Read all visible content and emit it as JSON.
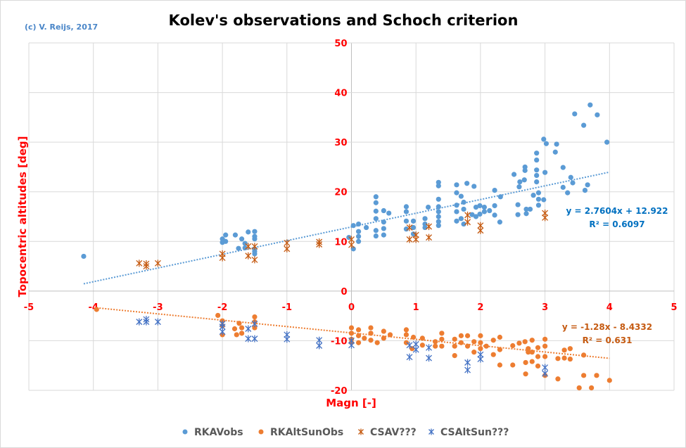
{
  "chart_data": {
    "type": "scatter",
    "title": "Kolev's observations and Schoch criterion",
    "copyright": "(c) V. Reijs, 2017",
    "xlabel": "Magn [-]",
    "ylabel": "Topocentric altitudes [deg]",
    "xlim": [
      -5,
      5
    ],
    "ylim": [
      -20,
      50
    ],
    "xticks": [
      -5,
      -4,
      -3,
      -2,
      -1,
      0,
      1,
      2,
      3,
      4,
      5
    ],
    "yticks": [
      -20,
      -10,
      0,
      10,
      20,
      30,
      40,
      50
    ],
    "grid": true,
    "legend_position": "bottom",
    "series": [
      {
        "name": "RKAVobs",
        "marker": "circle",
        "color": "#5b9bd5",
        "points": [
          [
            -4.15,
            7
          ],
          [
            -2,
            9.8
          ],
          [
            -2,
            10.5
          ],
          [
            -1.95,
            11.3
          ],
          [
            -1.95,
            10
          ],
          [
            -1.8,
            11.3
          ],
          [
            -1.7,
            10.5
          ],
          [
            -1.65,
            9.6
          ],
          [
            -1.75,
            8.6
          ],
          [
            -1.6,
            11.9
          ],
          [
            -1.65,
            8.7
          ],
          [
            -1.5,
            12
          ],
          [
            -1.5,
            11
          ],
          [
            -1.5,
            10.5
          ],
          [
            -1.5,
            8.5
          ],
          [
            -1.5,
            7.5
          ],
          [
            -1.5,
            8
          ],
          [
            -0.04,
            10.8
          ],
          [
            0.03,
            8.5
          ],
          [
            0.03,
            13.2
          ],
          [
            0.11,
            13.5
          ],
          [
            0.11,
            12
          ],
          [
            0.11,
            11
          ],
          [
            0.11,
            10
          ],
          [
            0.23,
            12.8
          ],
          [
            0.38,
            19
          ],
          [
            0.38,
            17.8
          ],
          [
            0.38,
            16.1
          ],
          [
            0.38,
            14.6
          ],
          [
            0.38,
            12.2
          ],
          [
            0.38,
            11.1
          ],
          [
            0.5,
            16.2
          ],
          [
            0.5,
            13.9
          ],
          [
            0.5,
            12.6
          ],
          [
            0.5,
            11.3
          ],
          [
            0.58,
            15.7
          ],
          [
            0.85,
            17
          ],
          [
            0.85,
            16
          ],
          [
            0.85,
            14.1
          ],
          [
            0.85,
            12.5
          ],
          [
            0.96,
            14.1
          ],
          [
            0.96,
            12.8
          ],
          [
            0.96,
            11.5
          ],
          [
            1.14,
            14.6
          ],
          [
            1.14,
            13.5
          ],
          [
            1.14,
            12.8
          ],
          [
            1.19,
            16.9
          ],
          [
            1.35,
            21.9
          ],
          [
            1.35,
            21.2
          ],
          [
            1.35,
            18.5
          ],
          [
            1.35,
            17
          ],
          [
            1.35,
            16
          ],
          [
            1.35,
            15
          ],
          [
            1.35,
            14
          ],
          [
            1.35,
            13.2
          ],
          [
            1.63,
            21.4
          ],
          [
            1.63,
            19.8
          ],
          [
            1.63,
            17.3
          ],
          [
            1.63,
            16
          ],
          [
            1.63,
            14.1
          ],
          [
            1.7,
            19.1
          ],
          [
            1.74,
            17.9
          ],
          [
            1.74,
            16.5
          ],
          [
            1.7,
            14.6
          ],
          [
            1.74,
            13.5
          ],
          [
            1.79,
            21.7
          ],
          [
            1.9,
            21.1
          ],
          [
            1.87,
            15.4
          ],
          [
            1.93,
            16.9
          ],
          [
            1.93,
            15
          ],
          [
            1.99,
            17.2
          ],
          [
            1.99,
            15.5
          ],
          [
            2.06,
            16.9
          ],
          [
            2.06,
            16
          ],
          [
            2.14,
            16.2
          ],
          [
            2.22,
            20.3
          ],
          [
            2.22,
            17.2
          ],
          [
            2.22,
            15.3
          ],
          [
            2.31,
            19
          ],
          [
            2.3,
            13.9
          ],
          [
            2.52,
            23.5
          ],
          [
            2.61,
            22
          ],
          [
            2.6,
            21
          ],
          [
            2.69,
            25
          ],
          [
            2.69,
            24.3
          ],
          [
            2.68,
            22.4
          ],
          [
            2.58,
            17.4
          ],
          [
            2.58,
            15.4
          ],
          [
            2.71,
            16.5
          ],
          [
            2.71,
            15.6
          ],
          [
            2.77,
            16.5
          ],
          [
            2.87,
            27.8
          ],
          [
            2.87,
            26.4
          ],
          [
            2.87,
            24.4
          ],
          [
            2.87,
            23.3
          ],
          [
            2.87,
            22
          ],
          [
            3,
            23.9
          ],
          [
            2.98,
            30.6
          ],
          [
            3.02,
            29.7
          ],
          [
            2.82,
            19.3
          ],
          [
            2.9,
            19.8
          ],
          [
            2.9,
            18.5
          ],
          [
            2.9,
            17.3
          ],
          [
            2.98,
            18.4
          ],
          [
            3.18,
            29.6
          ],
          [
            3.16,
            28
          ],
          [
            3.28,
            24.9
          ],
          [
            3.4,
            22.9
          ],
          [
            3.43,
            21.8
          ],
          [
            3.28,
            20.9
          ],
          [
            3.35,
            19.8
          ],
          [
            3.62,
            20.3
          ],
          [
            3.66,
            21.4
          ],
          [
            3.46,
            35.7
          ],
          [
            3.6,
            33.4
          ],
          [
            3.7,
            37.5
          ],
          [
            3.81,
            35.5
          ],
          [
            3.96,
            30
          ]
        ]
      },
      {
        "name": "RKAltSunObs",
        "marker": "circle",
        "color": "#ed7d31",
        "points": [
          [
            -3.95,
            -3.7
          ],
          [
            -2.07,
            -4.9
          ],
          [
            -2,
            -6
          ],
          [
            -2,
            -7
          ],
          [
            -2,
            -8.8
          ],
          [
            -1.81,
            -7.6
          ],
          [
            -1.78,
            -8.8
          ],
          [
            -1.74,
            -6.5
          ],
          [
            -1.7,
            -7.4
          ],
          [
            -1.7,
            -8.5
          ],
          [
            -1.5,
            -5.2
          ],
          [
            -1.5,
            -6.2
          ],
          [
            -1.5,
            -7.4
          ],
          [
            0,
            -7.4
          ],
          [
            0,
            -8.5
          ],
          [
            0,
            -9.7
          ],
          [
            0,
            -10.4
          ],
          [
            0.11,
            -7.8
          ],
          [
            0.11,
            -9
          ],
          [
            0.11,
            -10.4
          ],
          [
            0.2,
            -9.5
          ],
          [
            0.3,
            -7.4
          ],
          [
            0.3,
            -8.5
          ],
          [
            0.3,
            -9.9
          ],
          [
            0.4,
            -10.4
          ],
          [
            0.5,
            -8.1
          ],
          [
            0.5,
            -9.5
          ],
          [
            0.6,
            -8.8
          ],
          [
            0.85,
            -7.8
          ],
          [
            0.85,
            -8.8
          ],
          [
            0.85,
            -10.4
          ],
          [
            0.96,
            -9.3
          ],
          [
            0.94,
            -11.6
          ],
          [
            1.1,
            -9.5
          ],
          [
            1.1,
            -10.9
          ],
          [
            1.3,
            -10.2
          ],
          [
            1.3,
            -11.1
          ],
          [
            1.4,
            -8.5
          ],
          [
            1.4,
            -9.7
          ],
          [
            1.4,
            -11.1
          ],
          [
            1.6,
            -9.7
          ],
          [
            1.6,
            -11.1
          ],
          [
            1.6,
            -13
          ],
          [
            1.7,
            -9
          ],
          [
            1.7,
            -10.4
          ],
          [
            1.8,
            -9
          ],
          [
            1.8,
            -11.1
          ],
          [
            1.9,
            -10.2
          ],
          [
            1.9,
            -12.3
          ],
          [
            2,
            -9
          ],
          [
            2,
            -10.4
          ],
          [
            2,
            -11.6
          ],
          [
            2.09,
            -11.1
          ],
          [
            2.2,
            -9.9
          ],
          [
            2.2,
            -12.8
          ],
          [
            2.3,
            -9.3
          ],
          [
            2.3,
            -11.8
          ],
          [
            2.3,
            -14.9
          ],
          [
            2.5,
            -11
          ],
          [
            2.5,
            -14.9
          ],
          [
            2.6,
            -10.5
          ],
          [
            2.69,
            -10.2
          ],
          [
            2.7,
            -14.4
          ],
          [
            2.7,
            -16.7
          ],
          [
            2.74,
            -11.6
          ],
          [
            2.74,
            -12.3
          ],
          [
            2.8,
            -9.9
          ],
          [
            2.8,
            -12.3
          ],
          [
            2.8,
            -14.2
          ],
          [
            2.89,
            -11.4
          ],
          [
            2.89,
            -13.2
          ],
          [
            2.89,
            -15.1
          ],
          [
            3,
            -9.7
          ],
          [
            3,
            -11.1
          ],
          [
            3,
            -13.2
          ],
          [
            3,
            -17
          ],
          [
            3.2,
            -13.6
          ],
          [
            3.2,
            -17.7
          ],
          [
            3.3,
            -11.9
          ],
          [
            3.3,
            -13.5
          ],
          [
            3.39,
            -11.6
          ],
          [
            3.39,
            -13.7
          ],
          [
            3.6,
            -12.9
          ],
          [
            3.6,
            -17
          ],
          [
            3.8,
            -17
          ],
          [
            3.53,
            -19.5
          ],
          [
            3.72,
            -19.5
          ],
          [
            4,
            -18
          ]
        ]
      },
      {
        "name": "CSAV???",
        "marker": "star",
        "color": "#c55a11",
        "points": [
          [
            -3.29,
            5.6
          ],
          [
            -3.18,
            5.5
          ],
          [
            -3.18,
            5
          ],
          [
            -3,
            5.6
          ],
          [
            -2,
            7.5
          ],
          [
            -2,
            6.7
          ],
          [
            -1.6,
            9
          ],
          [
            -1.5,
            9
          ],
          [
            -1.6,
            7.1
          ],
          [
            -1.5,
            6.3
          ],
          [
            -1,
            9.7
          ],
          [
            -1,
            8.5
          ],
          [
            -0.5,
            9.9
          ],
          [
            -0.5,
            9.4
          ],
          [
            0,
            10.4
          ],
          [
            0,
            9.3
          ],
          [
            0.9,
            12.8
          ],
          [
            0.9,
            10.4
          ],
          [
            1,
            11.3
          ],
          [
            1,
            10.4
          ],
          [
            1.2,
            13
          ],
          [
            1.2,
            10.8
          ],
          [
            1.8,
            15.3
          ],
          [
            1.8,
            13.9
          ],
          [
            2,
            13.2
          ],
          [
            2,
            12.2
          ],
          [
            3,
            15.7
          ],
          [
            3,
            14.8
          ]
        ]
      },
      {
        "name": "CSAltSun???",
        "marker": "star",
        "color": "#4472c4",
        "points": [
          [
            -3.29,
            -6.2
          ],
          [
            -3.18,
            -5.7
          ],
          [
            -3.18,
            -6.2
          ],
          [
            -3,
            -6.2
          ],
          [
            -2,
            -6.6
          ],
          [
            -2,
            -7.2
          ],
          [
            -2,
            -8.2
          ],
          [
            -1.6,
            -7.6
          ],
          [
            -1.6,
            -9.6
          ],
          [
            -1.5,
            -9.6
          ],
          [
            -1.5,
            -6.6
          ],
          [
            -1,
            -8.8
          ],
          [
            -1,
            -9.7
          ],
          [
            -0.5,
            -9.9
          ],
          [
            -0.5,
            -11
          ],
          [
            0,
            -10
          ],
          [
            0,
            -10.9
          ],
          [
            0.9,
            -10.9
          ],
          [
            0.9,
            -13.3
          ],
          [
            1,
            -10.7
          ],
          [
            1,
            -11.8
          ],
          [
            1.2,
            -11.4
          ],
          [
            1.2,
            -13.5
          ],
          [
            1.8,
            -14.4
          ],
          [
            1.8,
            -15.9
          ],
          [
            2,
            -12.8
          ],
          [
            2,
            -13.7
          ],
          [
            3,
            -15.4
          ],
          [
            3,
            -16.6
          ]
        ]
      }
    ],
    "trendlines": [
      {
        "series": "RKAVobs",
        "slope": 2.7604,
        "intercept": 12.922,
        "x_range": [
          -4.15,
          4
        ],
        "color": "#5b9bd5",
        "text_color": "#0070c0",
        "equation": "y = 2.7604x + 12.922",
        "r2_label": "R² = 0.6097"
      },
      {
        "series": "RKAltSunObs",
        "slope": -1.28,
        "intercept": -8.4332,
        "x_range": [
          -3.95,
          4
        ],
        "color": "#ed7d31",
        "text_color": "#c55a11",
        "equation": "y = -1.28x - 8.4332",
        "r2_label": "R² = 0.631"
      }
    ]
  }
}
